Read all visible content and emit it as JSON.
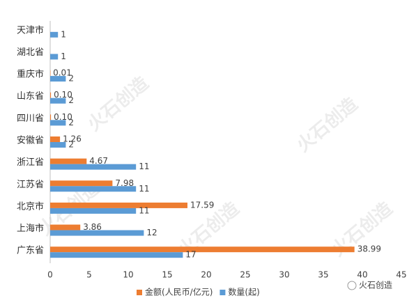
{
  "chart_data": {
    "type": "bar",
    "orientation": "horizontal",
    "categories": [
      "天津市",
      "湖北省",
      "重庆市",
      "山东省",
      "四川省",
      "安徽省",
      "浙江省",
      "江苏省",
      "北京市",
      "上海市",
      "广东省"
    ],
    "series": [
      {
        "name": "金额(人民币/亿元)",
        "color": "#ED7D31",
        "values": [
          null,
          null,
          0.01,
          0.1,
          0.1,
          1.26,
          4.67,
          7.98,
          17.59,
          3.86,
          38.99
        ],
        "value_labels": [
          null,
          null,
          "0.01",
          "0.10",
          "0.10",
          "1.26",
          "4.67",
          "7.98",
          "17.59",
          "3.86",
          "38.99"
        ]
      },
      {
        "name": "数量(起)",
        "color": "#5B9BD5",
        "values": [
          1,
          1,
          2,
          2,
          2,
          2,
          11,
          11,
          11,
          12,
          17
        ]
      }
    ],
    "xlim": [
      0,
      45
    ],
    "xticks": [
      0,
      5,
      10,
      15,
      20,
      25,
      30,
      35,
      40,
      45
    ],
    "grid": false,
    "legend": "bottom",
    "watermark": "火石创造",
    "source": "火石创造"
  }
}
